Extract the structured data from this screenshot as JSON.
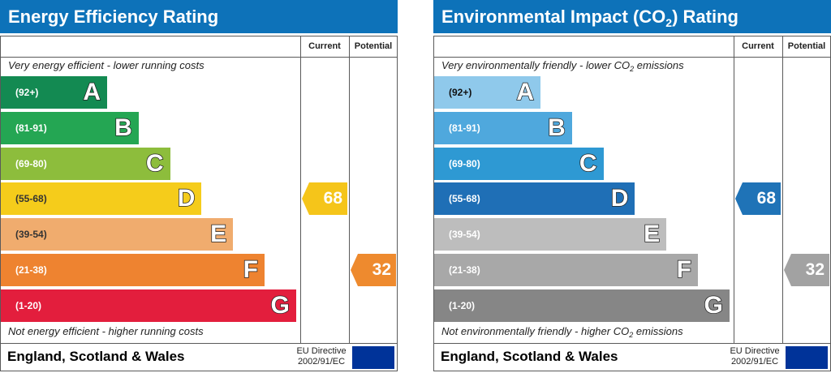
{
  "charts": [
    {
      "id": "energy",
      "title": "Energy Efficiency Rating",
      "col_current": "Current",
      "col_potential": "Potential",
      "top_desc": "Very energy efficient - lower running costs",
      "bottom_desc": "Not energy efficient - higher running costs",
      "footer": "England, Scotland & Wales",
      "eu_line1": "EU Directive",
      "eu_line2": "2002/91/EC",
      "current_value": "68",
      "potential_value": "32",
      "current_color": "#f5c51a",
      "potential_color": "#ee8a2e"
    },
    {
      "id": "env",
      "title_pre": "Environmental Impact (CO",
      "title_sub": "2",
      "title_post": ") Rating",
      "col_current": "Current",
      "col_potential": "Potential",
      "top_desc_pre": "Very environmentally friendly - lower CO",
      "top_desc_sub": "2",
      "top_desc_post": " emissions",
      "bottom_desc_pre": "Not environmentally friendly - higher CO",
      "bottom_desc_sub": "2",
      "bottom_desc_post": " emissions",
      "footer": "England, Scotland & Wales",
      "eu_line1": "EU Directive",
      "eu_line2": "2002/91/EC",
      "current_value": "68",
      "potential_value": "32",
      "current_color": "#1f73b7",
      "potential_color": "#a2a2a2"
    }
  ],
  "chart_data": [
    {
      "type": "bar",
      "categories": [
        "A",
        "B",
        "C",
        "D",
        "E",
        "F",
        "G"
      ],
      "ranges": [
        "(92+)",
        "(81-91)",
        "(69-80)",
        "(55-68)",
        "(39-54)",
        "(21-38)",
        "(1-20)"
      ],
      "colors": [
        "#138a52",
        "#24a653",
        "#8dbd3c",
        "#f5cc1b",
        "#f0ac6e",
        "#ee8330",
        "#e31e3d"
      ],
      "current": 68,
      "potential": 32
    },
    {
      "type": "bar",
      "categories": [
        "A",
        "B",
        "C",
        "D",
        "E",
        "F",
        "G"
      ],
      "ranges": [
        "(92+)",
        "(81-91)",
        "(69-80)",
        "(55-68)",
        "(39-54)",
        "(21-38)",
        "(1-20)"
      ],
      "colors": [
        "#8fc9eb",
        "#4fa8dd",
        "#2e99d3",
        "#1f6fb6",
        "#bdbdbd",
        "#a8a8a8",
        "#868686"
      ],
      "current": 68,
      "potential": 32
    }
  ]
}
